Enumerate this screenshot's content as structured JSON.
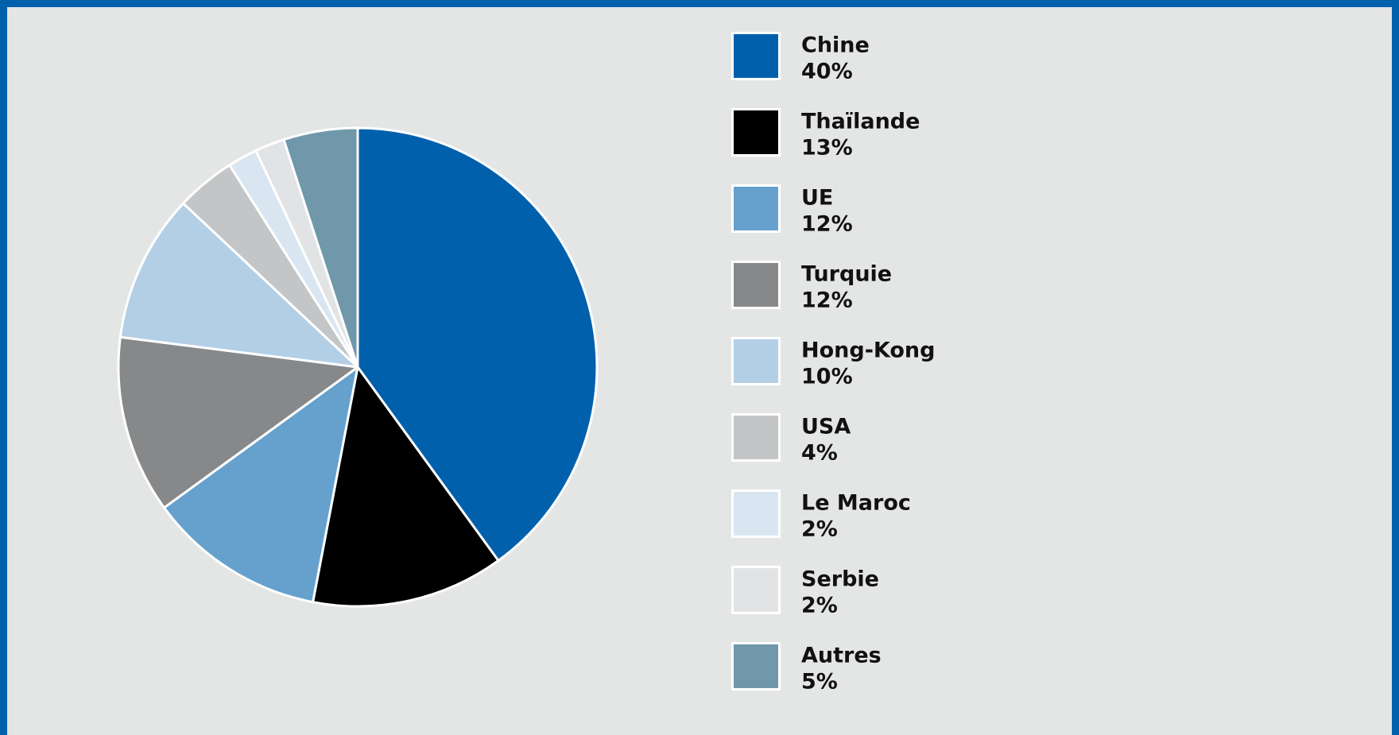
{
  "chart_data": {
    "type": "pie",
    "categories": [
      "Chine",
      "Thaïlande",
      "UE",
      "Turquie",
      "Hong-Kong",
      "USA",
      "Le Maroc",
      "Serbie",
      "Autres"
    ],
    "values": [
      40,
      13,
      12,
      12,
      10,
      4,
      2,
      2,
      5
    ],
    "value_labels": [
      "40%",
      "13%",
      "12%",
      "12%",
      "10%",
      "4%",
      "2%",
      "2%",
      "5%"
    ],
    "colors": [
      "#0060ac",
      "#000000",
      "#66a1cd",
      "#878889",
      "#b3cfe6",
      "#c4c5c7",
      "#d9e6f1",
      "#e2e3e4",
      "#7097aa"
    ],
    "legend": "right"
  }
}
